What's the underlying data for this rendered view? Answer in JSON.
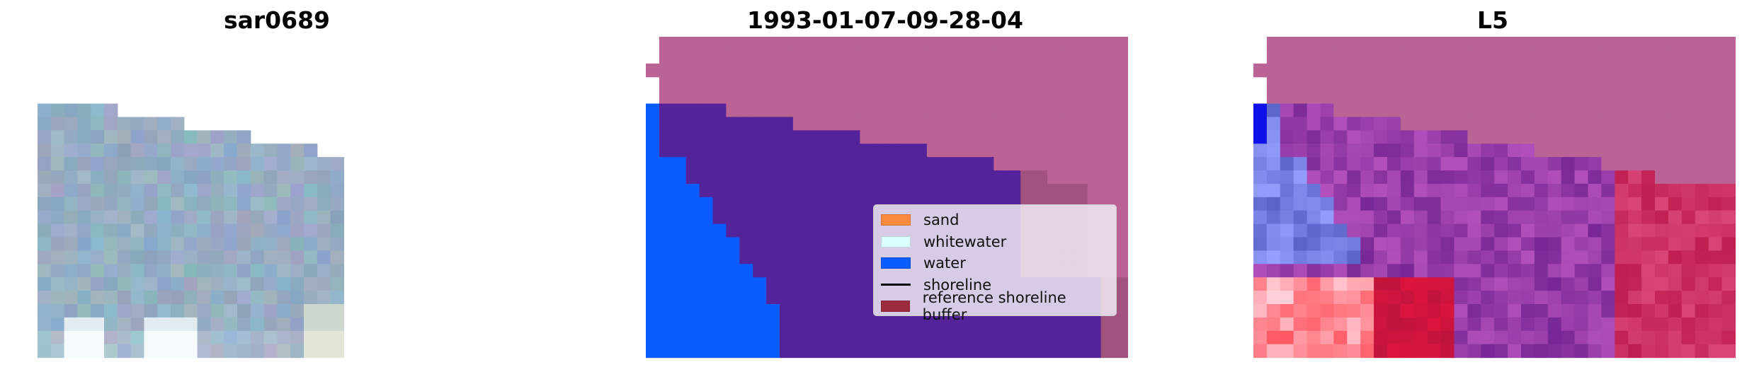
{
  "panels": [
    {
      "title": "sar0689"
    },
    {
      "title": "1993-01-07-09-28-04"
    },
    {
      "title": "L5"
    }
  ],
  "legend": {
    "items": [
      {
        "label": "sand",
        "color": "#fa8a3c",
        "kind": "patch"
      },
      {
        "label": "whitewater",
        "color": "#dcffff",
        "kind": "patch"
      },
      {
        "label": "water",
        "color": "#0a5cff",
        "kind": "patch"
      },
      {
        "label": "shoreline",
        "color": "#000000",
        "kind": "line"
      },
      {
        "label": "reference shoreline buffer",
        "color": "#9a2c3c",
        "kind": "patch"
      }
    ]
  },
  "colors": {
    "land": "#bb6395",
    "land_shadow": "#a2527e",
    "water": "#0a5cff",
    "overlap": "#54239a",
    "buffer": "#9a2c3c",
    "sar_base": "#9bb0c4",
    "prob_high": "#c0003c",
    "prob_low": "#0000f0"
  }
}
